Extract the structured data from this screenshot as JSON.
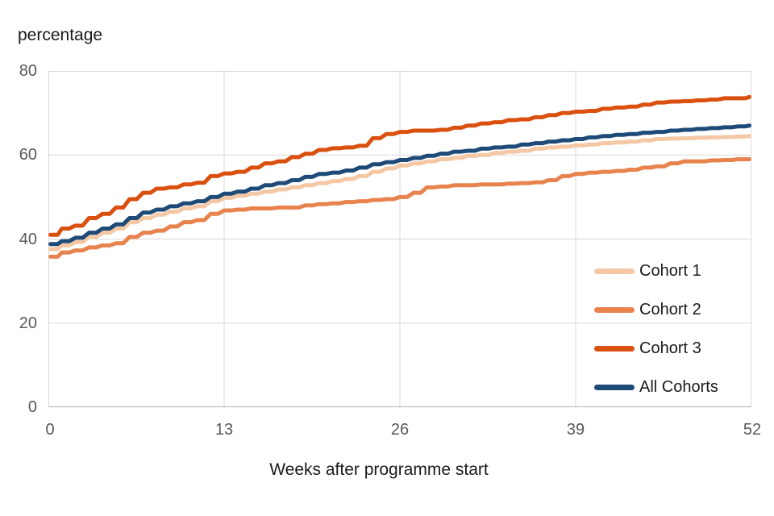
{
  "chart": {
    "y_axis_title": "percentage",
    "x_axis_title": "Weeks after programme start",
    "y_ticks": [
      "80",
      "60",
      "40",
      "20",
      "0"
    ],
    "x_ticks": [
      "0",
      "13",
      "26",
      "39",
      "52"
    ]
  },
  "colors": {
    "background": "#FFFFFF",
    "grid": "#D9D9D9",
    "axis": "#BFBFBF",
    "tick_text": "#595959",
    "label_text": "#1A1A1A"
  },
  "chart_data": {
    "type": "line",
    "title": "",
    "xlabel": "Weeks after programme start",
    "ylabel": "percentage",
    "xlim": [
      0,
      52
    ],
    "ylim": [
      0,
      80
    ],
    "x_tick_values": [
      0,
      13,
      26,
      39,
      52
    ],
    "y_tick_values": [
      0,
      20,
      40,
      60,
      80
    ],
    "grid": true,
    "legend_position": "inside-right",
    "x": [
      0,
      1,
      2,
      3,
      4,
      5,
      6,
      7,
      8,
      9,
      10,
      11,
      12,
      13,
      14,
      15,
      16,
      17,
      18,
      19,
      20,
      21,
      22,
      23,
      24,
      25,
      26,
      27,
      28,
      29,
      30,
      31,
      32,
      33,
      34,
      35,
      36,
      37,
      38,
      39,
      40,
      41,
      42,
      43,
      44,
      45,
      46,
      47,
      48,
      49,
      50,
      51,
      52
    ],
    "series": [
      {
        "name": "Cohort 1",
        "color": "#F4C7A5",
        "values": [
          37.6,
          38.5,
          39.3,
          40.5,
          41.5,
          42.5,
          44.0,
          45.0,
          45.8,
          46.5,
          47.3,
          47.8,
          49.0,
          49.8,
          50.3,
          50.8,
          51.3,
          51.8,
          52.3,
          52.8,
          53.3,
          53.8,
          54.3,
          55.0,
          56.0,
          56.8,
          57.5,
          58.0,
          58.5,
          59.0,
          59.3,
          59.8,
          60.0,
          60.5,
          60.8,
          61.0,
          61.5,
          61.8,
          62.0,
          62.3,
          62.5,
          62.8,
          63.0,
          63.2,
          63.5,
          63.8,
          63.9,
          64.0,
          64.1,
          64.2,
          64.3,
          64.4,
          64.5
        ]
      },
      {
        "name": "Cohort 2",
        "color": "#E8834E",
        "values": [
          35.8,
          36.8,
          37.3,
          38.0,
          38.5,
          39.0,
          40.5,
          41.5,
          42.0,
          43.0,
          44.0,
          44.5,
          46.0,
          46.8,
          47.0,
          47.3,
          47.3,
          47.5,
          47.5,
          48.0,
          48.3,
          48.5,
          48.8,
          49.0,
          49.3,
          49.5,
          50.0,
          51.0,
          52.3,
          52.5,
          52.8,
          52.8,
          53.0,
          53.0,
          53.2,
          53.3,
          53.5,
          54.0,
          55.0,
          55.5,
          55.8,
          56.0,
          56.2,
          56.5,
          57.0,
          57.3,
          58.0,
          58.5,
          58.5,
          58.7,
          58.8,
          59.0,
          59.0
        ]
      },
      {
        "name": "Cohort 3",
        "color": "#D9500F",
        "values": [
          41.0,
          42.5,
          43.2,
          45.0,
          46.0,
          47.5,
          49.5,
          51.0,
          52.0,
          52.3,
          53.0,
          53.4,
          55.0,
          55.6,
          56.0,
          57.0,
          58.0,
          58.5,
          59.5,
          60.3,
          61.2,
          61.6,
          61.8,
          62.2,
          64.0,
          65.0,
          65.5,
          65.8,
          65.8,
          66.0,
          66.5,
          67.0,
          67.5,
          67.8,
          68.3,
          68.5,
          69.0,
          69.5,
          70.0,
          70.3,
          70.5,
          71.0,
          71.3,
          71.5,
          72.0,
          72.5,
          72.7,
          72.8,
          73.0,
          73.2,
          73.5,
          73.5,
          73.8
        ]
      },
      {
        "name": "All Cohorts",
        "color": "#1E4A77",
        "values": [
          38.8,
          39.5,
          40.3,
          41.5,
          42.5,
          43.5,
          45.0,
          46.3,
          47.0,
          47.8,
          48.5,
          49.0,
          50.0,
          50.8,
          51.3,
          52.0,
          52.8,
          53.3,
          54.0,
          54.8,
          55.5,
          55.8,
          56.3,
          57.0,
          57.8,
          58.3,
          58.8,
          59.3,
          59.8,
          60.3,
          60.8,
          61.0,
          61.5,
          61.8,
          62.0,
          62.5,
          62.8,
          63.2,
          63.5,
          63.8,
          64.2,
          64.5,
          64.8,
          65.0,
          65.3,
          65.5,
          65.8,
          66.0,
          66.2,
          66.4,
          66.6,
          66.8,
          67.0
        ]
      }
    ]
  }
}
